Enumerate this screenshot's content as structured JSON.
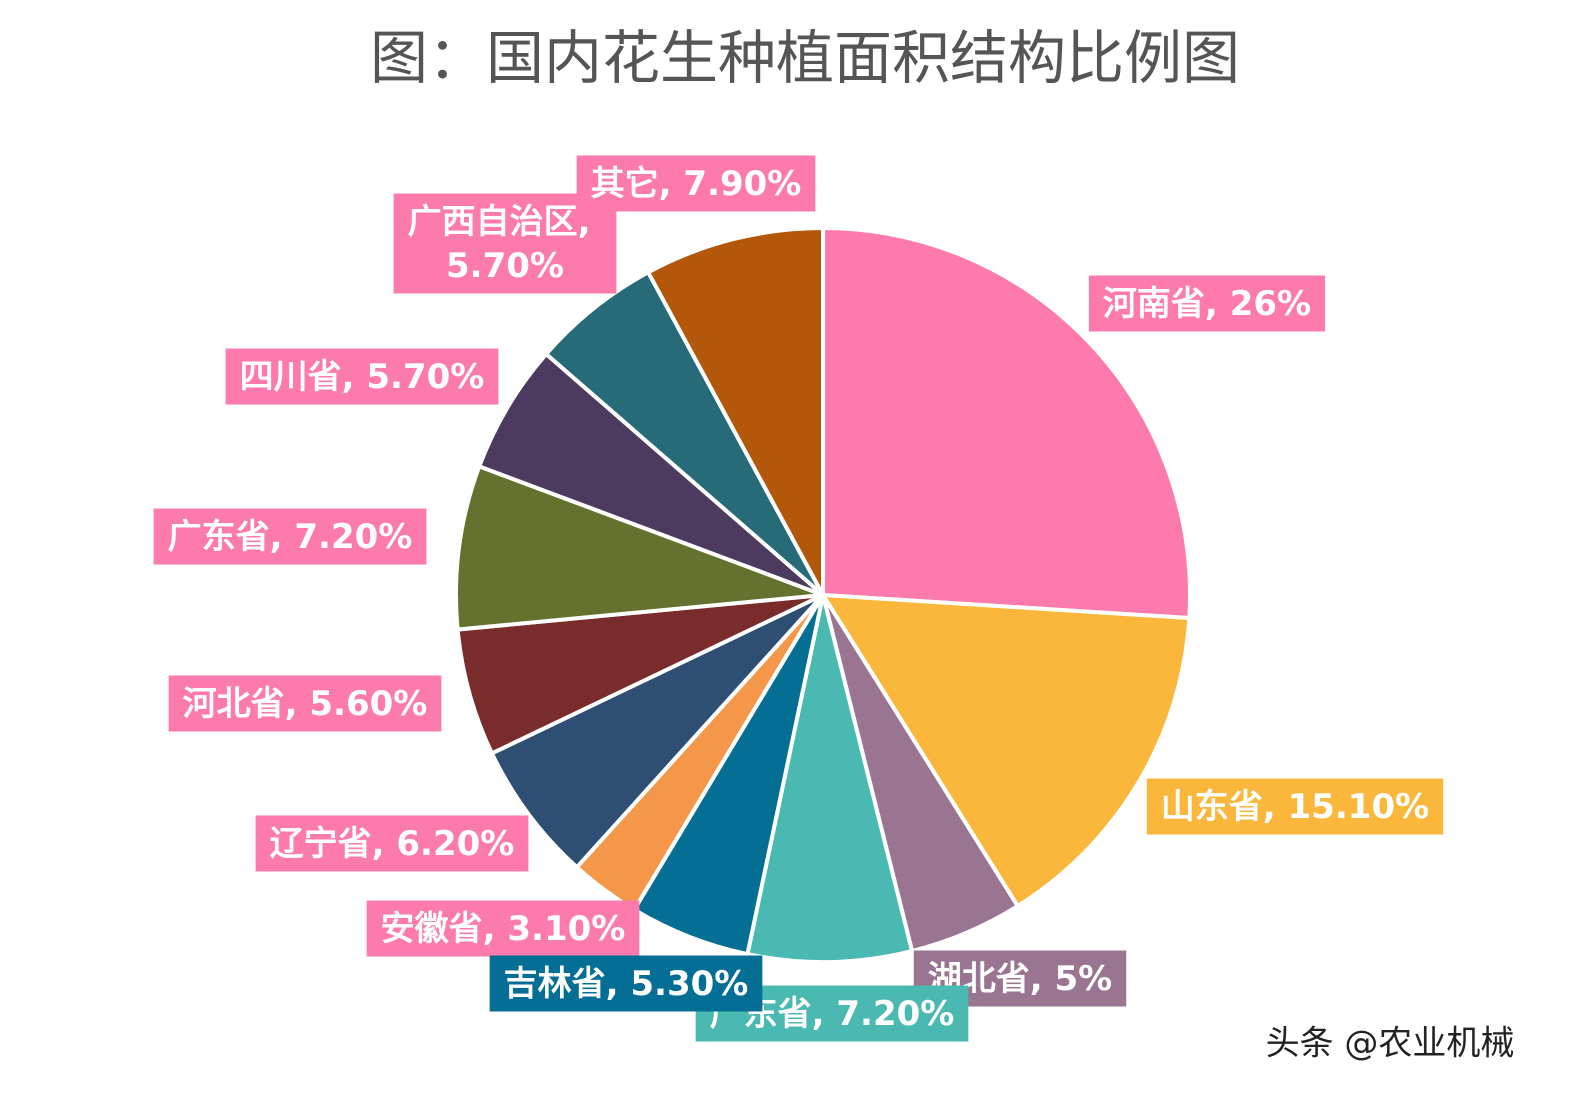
{
  "chart_data": {
    "type": "pie",
    "title": "图：国内花生种植面积结构比例图",
    "categories": [
      "河南省",
      "山东省",
      "湖北省",
      "广东省",
      "吉林省",
      "安徽省",
      "辽宁省",
      "河北省",
      "广东省",
      "四川省",
      "广西自治区",
      "其它"
    ],
    "values": [
      26,
      15.1,
      5,
      7.2,
      5.3,
      3.1,
      6.2,
      5.6,
      7.2,
      5.7,
      5.7,
      7.9
    ],
    "value_labels": [
      "26%",
      "15.10%",
      "5%",
      "7.20%",
      "5.30%",
      "3.10%",
      "6.20%",
      "5.60%",
      "7.20%",
      "5.70%",
      "5.70%",
      "7.90%"
    ],
    "label_separator": ", ",
    "colors": [
      "#fd7bac",
      "#fbb73c",
      "#997591",
      "#4ab9b1",
      "#056e95",
      "#f59749",
      "#2e4e73",
      "#7a2c2c",
      "#63732f",
      "#4c3b5e",
      "#276b79",
      "#b3580a"
    ],
    "label_colors": [
      "#fd7bac",
      "#fbb73c",
      "#997591",
      "#4ab9b1",
      "#056e95",
      "#fd7bac",
      "#fd7bac",
      "#fd7bac",
      "#fd7bac",
      "#fd7bac",
      "#fd7bac",
      "#fd7bac"
    ],
    "watermark": "头条 @农业机械"
  }
}
